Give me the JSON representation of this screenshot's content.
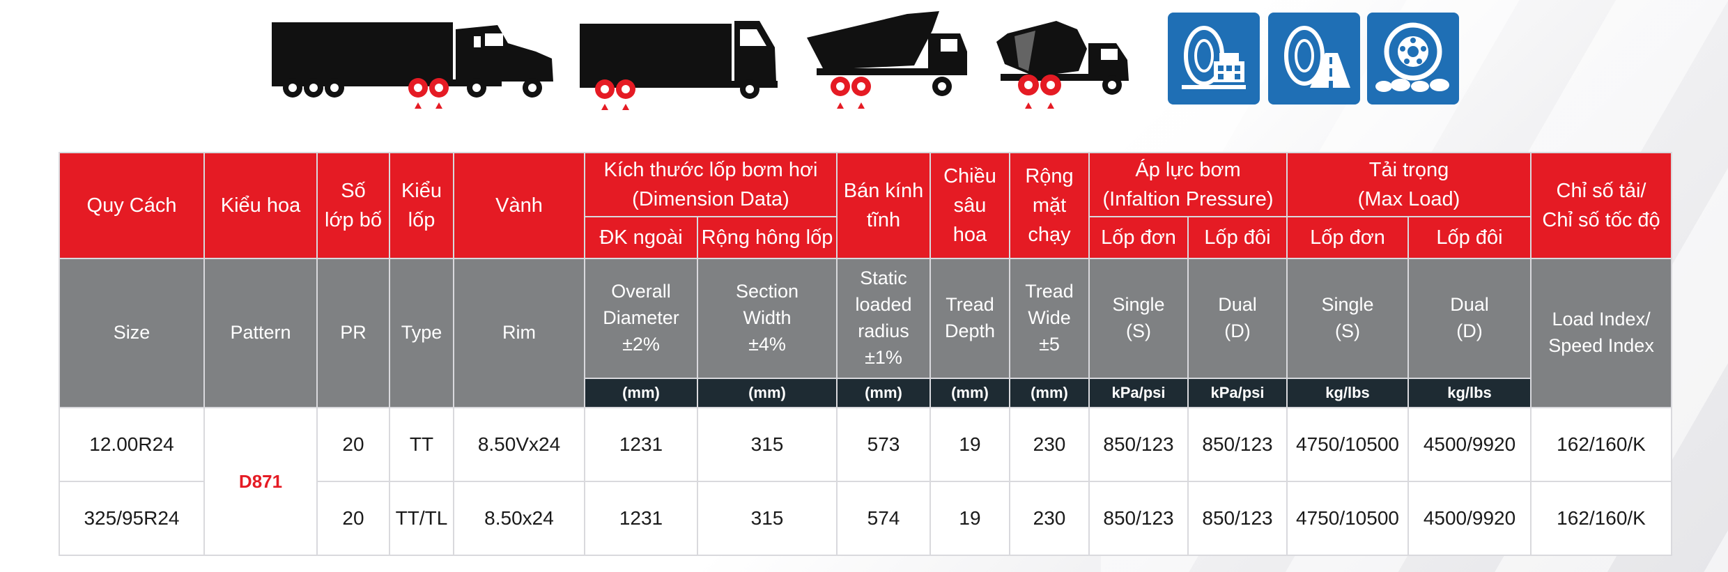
{
  "vehicle_icons": [
    "semi-truck-icon",
    "box-truck-icon",
    "dump-truck-icon",
    "mixer-truck-icon"
  ],
  "usage_icons": [
    "tire-urban-icon",
    "tire-highway-icon",
    "tire-offroad-icon"
  ],
  "colors": {
    "header_red": "#e51b24",
    "header_gray": "#7f8183",
    "unit_dark": "#1e2b33",
    "icon_blue": "#1f6fb5"
  },
  "header_vi": {
    "size": "Quy Cách",
    "pattern": "Kiểu hoa",
    "pr_1": "Số",
    "pr_2": "lớp bố",
    "type_1": "Kiểu",
    "type_2": "lốp",
    "rim": "Vành",
    "dim_1": "Kích thước lốp bơm hơi",
    "dim_2": "(Dimension Data)",
    "od": "ĐK ngoài",
    "sw": "Rộng hông lốp",
    "slr_1": "Bán kính",
    "slr_2": "tĩnh",
    "td_1": "Chiều",
    "td_2": "sâu",
    "td_3": "hoa",
    "tw_1": "Rộng",
    "tw_2": "mặt",
    "tw_3": "chạy",
    "pressure_1": "Áp lực bơm",
    "pressure_2": "(Infaltion Pressure)",
    "p_single": "Lốp đơn",
    "p_dual": "Lốp đôi",
    "load_1": "Tải trọng",
    "load_2": "(Max Load)",
    "l_single": "Lốp đơn",
    "l_dual": "Lốp đôi",
    "index_1": "Chỉ số tải/",
    "index_2": "Chỉ số tốc độ"
  },
  "header_en": {
    "size": "Size",
    "pattern": "Pattern",
    "pr": "PR",
    "type": "Type",
    "rim": "Rim",
    "od_1": "Overall",
    "od_2": "Diameter",
    "od_3": "±2%",
    "sw_1": "Section",
    "sw_2": "Width",
    "sw_3": "±4%",
    "slr_1": "Static",
    "slr_2": "loaded",
    "slr_3": "radius",
    "slr_4": "±1%",
    "td_1": "Tread",
    "td_2": "Depth",
    "tw_1": "Tread",
    "tw_2": "Wide",
    "tw_3": "±5",
    "ps_1": "Single",
    "ps_2": "(S)",
    "pd_1": "Dual",
    "pd_2": "(D)",
    "ls_1": "Single",
    "ls_2": "(S)",
    "ld_1": "Dual",
    "ld_2": "(D)",
    "index_1": "Load Index/",
    "index_2": "Speed Index"
  },
  "units": {
    "od": "(mm)",
    "sw": "(mm)",
    "slr": "(mm)",
    "td": "(mm)",
    "tw": "(mm)",
    "ps": "kPa/psi",
    "pd": "kPa/psi",
    "ls": "kg/lbs",
    "ld": "kg/lbs"
  },
  "pattern_name": "D871",
  "rows": [
    {
      "size": "12.00R24",
      "pr": "20",
      "type": "TT",
      "rim": "8.50Vx24",
      "od": "1231",
      "sw": "315",
      "slr": "573",
      "td": "19",
      "tw": "230",
      "ps": "850/123",
      "pd": "850/123",
      "ls": "4750/10500",
      "ld": "4500/9920",
      "index": "162/160/K"
    },
    {
      "size": "325/95R24",
      "pr": "20",
      "type": "TT/TL",
      "rim": "8.50x24",
      "od": "1231",
      "sw": "315",
      "slr": "574",
      "td": "19",
      "tw": "230",
      "ps": "850/123",
      "pd": "850/123",
      "ls": "4750/10500",
      "ld": "4500/9920",
      "index": "162/160/K"
    }
  ]
}
